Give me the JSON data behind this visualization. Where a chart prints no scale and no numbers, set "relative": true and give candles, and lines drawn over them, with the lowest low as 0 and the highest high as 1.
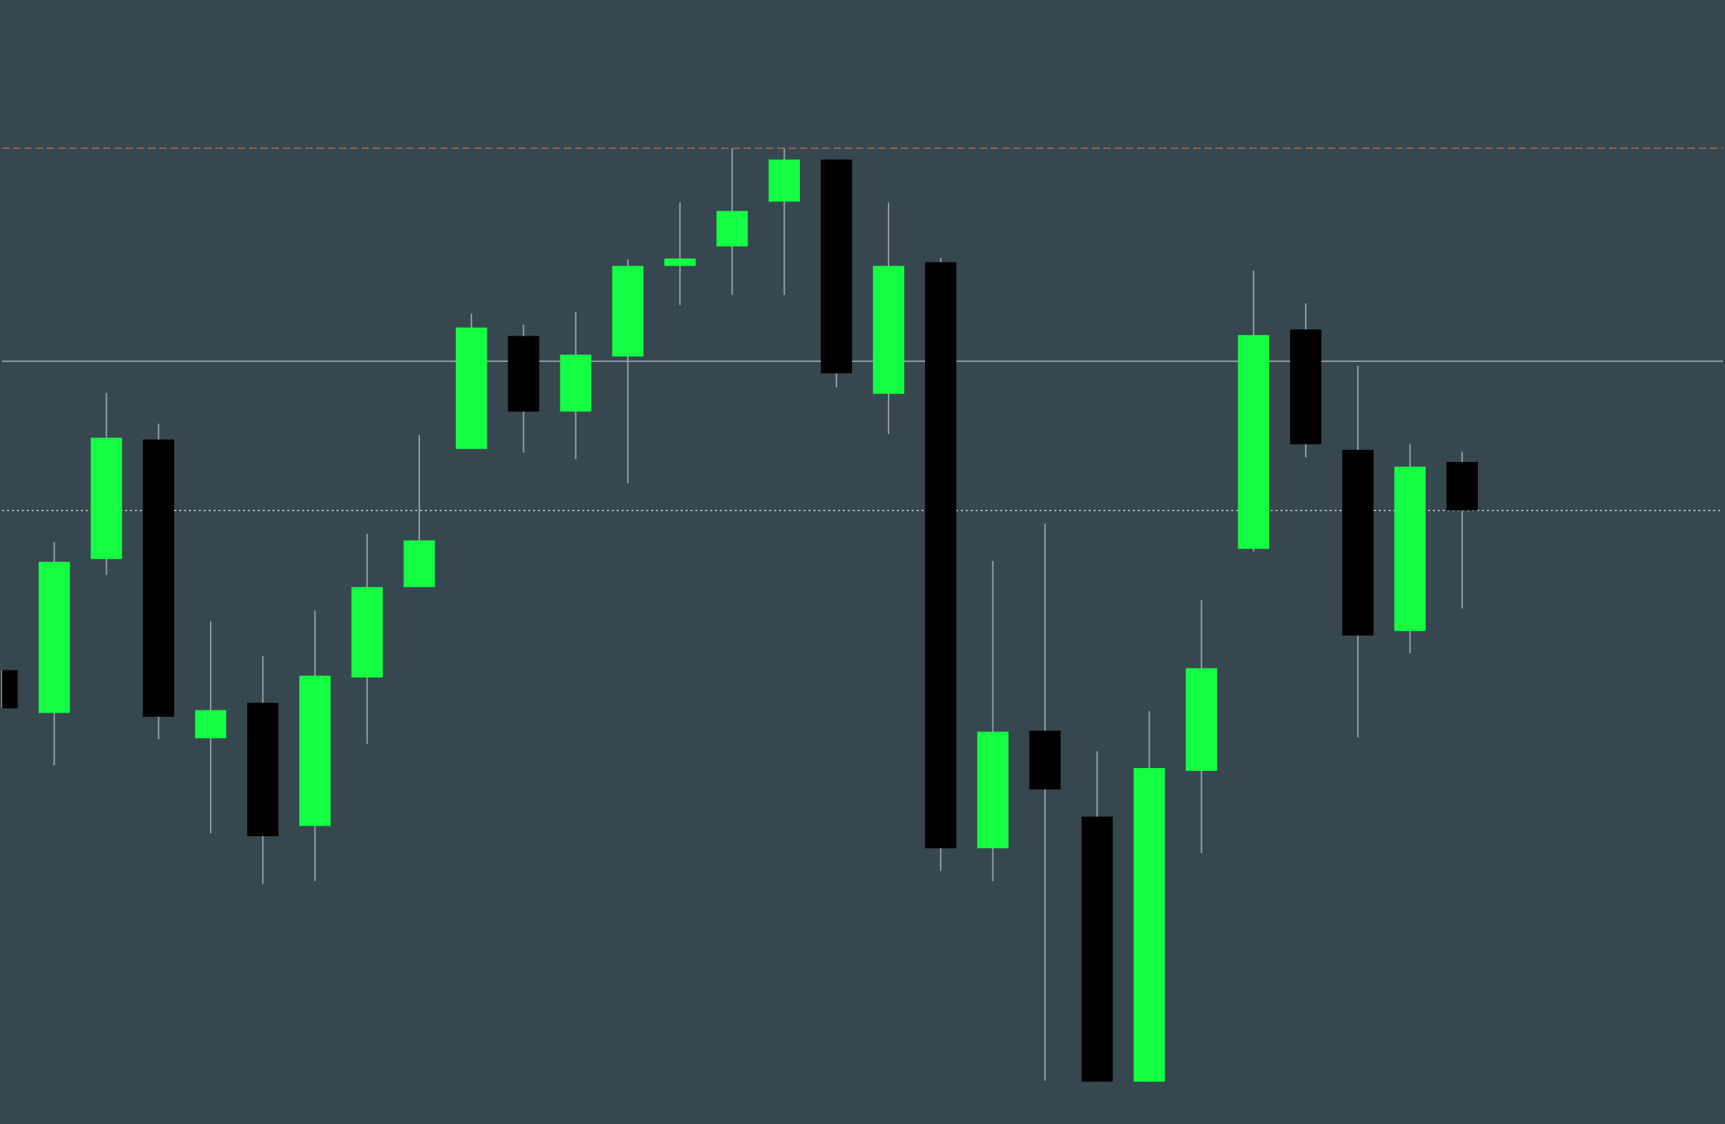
{
  "chart_data": {
    "type": "candlestick",
    "relative": true,
    "categories": [
      null,
      null,
      null,
      null,
      null,
      null,
      null,
      null,
      null,
      null,
      null,
      null,
      null,
      null,
      null,
      null,
      null,
      null,
      null,
      null,
      null,
      null,
      null,
      null,
      null,
      null,
      null,
      null,
      null,
      null,
      null,
      null,
      null,
      null
    ],
    "ohlc": [
      [
        0.441,
        0.441,
        0.4,
        0.4
      ],
      [
        0.395,
        0.578,
        0.339,
        0.557
      ],
      [
        0.56,
        0.738,
        0.543,
        0.69
      ],
      [
        0.688,
        0.705,
        0.367,
        0.391
      ],
      [
        0.368,
        0.493,
        0.266,
        0.398
      ],
      [
        0.406,
        0.456,
        0.212,
        0.263
      ],
      [
        0.274,
        0.505,
        0.215,
        0.435
      ],
      [
        0.433,
        0.587,
        0.362,
        0.53
      ],
      [
        0.53,
        0.693,
        0.53,
        0.58
      ],
      [
        0.678,
        0.823,
        0.678,
        0.808
      ],
      [
        0.799,
        0.811,
        0.674,
        0.718
      ],
      [
        0.718,
        0.825,
        0.667,
        0.779
      ],
      [
        0.777,
        0.881,
        0.641,
        0.874
      ],
      [
        0.874,
        0.942,
        0.832,
        0.882
      ],
      [
        0.895,
        1.0,
        0.843,
        0.933
      ],
      [
        0.943,
        1.0,
        0.843,
        0.988
      ],
      [
        0.988,
        0.988,
        0.744,
        0.759
      ],
      [
        0.737,
        0.942,
        0.694,
        0.874
      ],
      [
        0.878,
        0.883,
        0.226,
        0.25
      ],
      [
        0.25,
        0.558,
        0.215,
        0.375
      ],
      [
        0.376,
        0.598,
        0.001,
        0.313
      ],
      [
        0.284,
        0.354,
        0,
        0
      ],
      [
        0,
        0.397,
        0,
        0.336
      ],
      [
        0.333,
        0.516,
        0.245,
        0.443
      ],
      [
        0.571,
        0.869,
        0.568,
        0.8
      ],
      [
        0.806,
        0.834,
        0.669,
        0.683
      ],
      [
        0.677,
        0.767,
        0.369,
        0.478
      ],
      [
        0.483,
        0.683,
        0.459,
        0.659
      ],
      [
        0.664,
        0.675,
        0.507,
        0.612
      ],
      null,
      null,
      null,
      null,
      null
    ],
    "colors": [
      "#000000",
      "#14ff44",
      "#14ff44",
      "#000000",
      "#14ff44",
      "#000000",
      "#14ff44",
      "#14ff44",
      "#14ff44",
      "#14ff44",
      "#000000",
      "#14ff44",
      "#14ff44",
      "#14ff44",
      "#14ff44",
      "#14ff44",
      "#000000",
      "#14ff44",
      "#000000",
      "#14ff44",
      "#000000",
      "#000000",
      "#14ff44",
      "#14ff44",
      "#14ff44",
      "#000000",
      "#000000",
      "#14ff44",
      "#000000",
      null,
      null,
      null,
      null,
      null
    ],
    "ref_lines": [
      {
        "axis": "y",
        "value": 1.0,
        "color": "#b5704a",
        "line_style": "dashed"
      },
      {
        "axis": "y",
        "value": 0.612,
        "color": "#cfd8dc",
        "line_style": "dotted"
      },
      {
        "axis": "y",
        "value": 0.772,
        "color": "#b0bec5",
        "line_style": "solid"
      }
    ]
  }
}
